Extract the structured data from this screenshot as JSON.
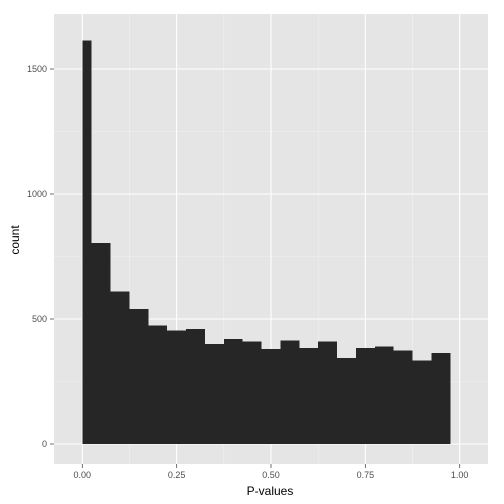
{
  "chart_data": {
    "type": "bar",
    "title": "",
    "xlabel": "P-values",
    "ylabel": "count",
    "bin_width": 0.05,
    "bin_centers": [
      0.0,
      0.05,
      0.1,
      0.15,
      0.2,
      0.25,
      0.3,
      0.35,
      0.4,
      0.45,
      0.5,
      0.55,
      0.6,
      0.65,
      0.7,
      0.75,
      0.8,
      0.85,
      0.9,
      0.95,
      1.0
    ],
    "values": [
      1615,
      805,
      610,
      540,
      475,
      455,
      460,
      400,
      420,
      410,
      380,
      415,
      385,
      410,
      345,
      385,
      390,
      375,
      335,
      365,
      0
    ],
    "xlim": [
      -0.075,
      1.075
    ],
    "ylim": [
      -80,
      1720
    ],
    "x_ticks": [
      0.0,
      0.25,
      0.5,
      0.75,
      1.0
    ],
    "x_tick_labels": [
      "0.00",
      "0.25",
      "0.50",
      "0.75",
      "1.00"
    ],
    "y_ticks": [
      0,
      500,
      1000,
      1500
    ],
    "y_tick_labels": [
      "0",
      "500",
      "1000",
      "1500"
    ],
    "grid": true,
    "colors": {
      "bar": "#262626",
      "panel_background": "#e5e5e5",
      "grid_major": "#ffffff",
      "grid_minor": "#f2f2f2"
    }
  }
}
